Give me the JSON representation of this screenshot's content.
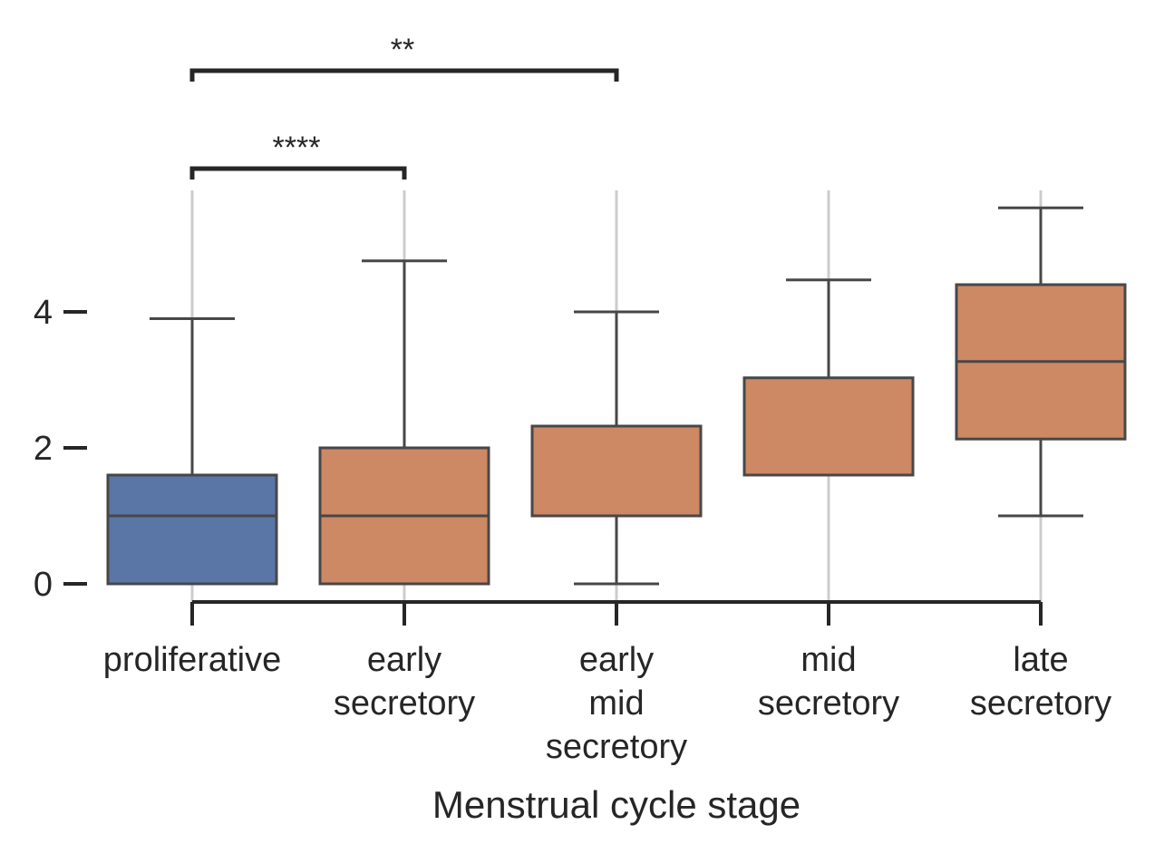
{
  "chart_data": {
    "type": "box",
    "xlabel": "Menstrual cycle stage",
    "ylabel": "",
    "ylim": [
      -0.3,
      5.8
    ],
    "yticks": [
      0,
      2,
      4
    ],
    "grid": "vertical",
    "categories": [
      {
        "label": [
          "proliferative"
        ],
        "color": "#5a76a6",
        "whisker_low": 0,
        "q1": 0,
        "median": 1,
        "q3": 1.6,
        "whisker_high": 3.9
      },
      {
        "label": [
          "early",
          "secretory"
        ],
        "color": "#cd8864",
        "whisker_low": 0,
        "q1": 0,
        "median": 1,
        "q3": 2.0,
        "whisker_high": 4.75
      },
      {
        "label": [
          "early",
          "mid",
          "secretory"
        ],
        "color": "#cd8864",
        "whisker_low": 0,
        "q1": 1.0,
        "median": 1.0,
        "q3": 2.32,
        "whisker_high": 4.0
      },
      {
        "label": [
          "mid",
          "secretory"
        ],
        "color": "#cd8864",
        "whisker_low": 1.6,
        "q1": 1.6,
        "median": 1.6,
        "q3": 3.03,
        "whisker_high": 4.47
      },
      {
        "label": [
          "late",
          "secretory"
        ],
        "color": "#cd8864",
        "whisker_low": 1.0,
        "q1": 2.13,
        "median": 3.27,
        "q3": 4.4,
        "whisker_high": 5.53
      }
    ],
    "annotations": [
      {
        "from": 0,
        "to": 1,
        "text": "****"
      },
      {
        "from": 0,
        "to": 2,
        "text": "**"
      }
    ]
  }
}
